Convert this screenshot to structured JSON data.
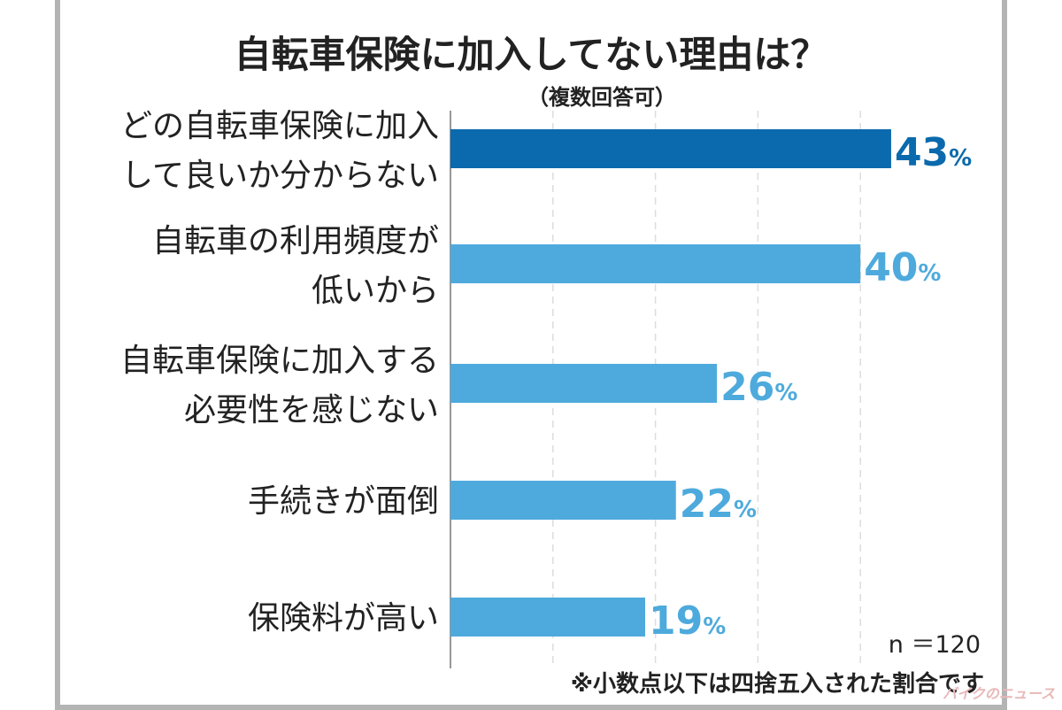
{
  "chart_data": {
    "type": "bar",
    "orientation": "horizontal",
    "title": "自転車保険に加入してない理由は？",
    "subtitle": "（複数回答可）",
    "categories": [
      [
        "どの自転車保険に加入",
        "して良いか分からない"
      ],
      [
        "自転車の利用頻度が",
        "低いから"
      ],
      [
        "自転車保険に加入する",
        "必要性を感じない"
      ],
      [
        "手続きが面倒"
      ],
      [
        "保険料が高い"
      ]
    ],
    "values": [
      43,
      40,
      26,
      22,
      19
    ],
    "value_labels": [
      "43",
      "40",
      "26",
      "22",
      "19"
    ],
    "unit": "%",
    "xlim": [
      0,
      50
    ],
    "grid": true,
    "colors": {
      "highlight": "#0a6aad",
      "bar": "#4eaadc",
      "text": "#222222"
    }
  },
  "notes": {
    "sample": "n ＝120",
    "rounding": "※小数点以下は四捨五入された割合です"
  },
  "watermark": "バイクのニュース"
}
